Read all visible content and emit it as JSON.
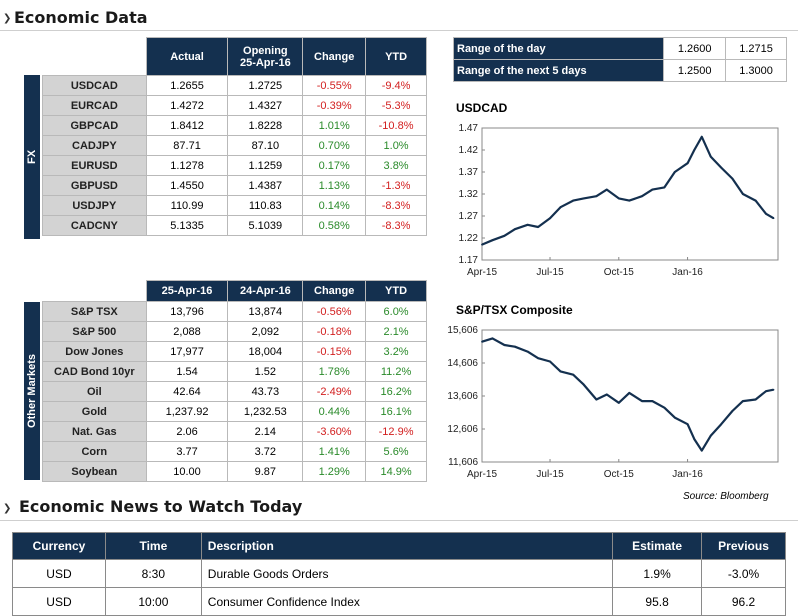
{
  "sections": {
    "economic_data": "Economic Data",
    "economic_news": "Economic News to Watch Today"
  },
  "fx": {
    "sidebar_label": "FX",
    "headers": [
      "Actual",
      "Opening",
      "25-Apr-16",
      "Change",
      "YTD"
    ],
    "rows": [
      {
        "name": "USDCAD",
        "actual": "1.2655",
        "opening": "1.2725",
        "change": "-0.55%",
        "ytd": "-9.4%"
      },
      {
        "name": "EURCAD",
        "actual": "1.4272",
        "opening": "1.4327",
        "change": "-0.39%",
        "ytd": "-5.3%"
      },
      {
        "name": "GBPCAD",
        "actual": "1.8412",
        "opening": "1.8228",
        "change": "1.01%",
        "ytd": "-10.8%"
      },
      {
        "name": "CADJPY",
        "actual": "87.71",
        "opening": "87.10",
        "change": "0.70%",
        "ytd": "1.0%"
      },
      {
        "name": "EURUSD",
        "actual": "1.1278",
        "opening": "1.1259",
        "change": "0.17%",
        "ytd": "3.8%"
      },
      {
        "name": "GBPUSD",
        "actual": "1.4550",
        "opening": "1.4387",
        "change": "1.13%",
        "ytd": "-1.3%"
      },
      {
        "name": "USDJPY",
        "actual": "110.99",
        "opening": "110.83",
        "change": "0.14%",
        "ytd": "-8.3%"
      },
      {
        "name": "CADCNY",
        "actual": "5.1335",
        "opening": "5.1039",
        "change": "0.58%",
        "ytd": "-8.3%"
      }
    ]
  },
  "other": {
    "sidebar_label": "Other Markets",
    "headers": [
      "25-Apr-16",
      "24-Apr-16",
      "Change",
      "YTD"
    ],
    "rows": [
      {
        "name": "S&P TSX",
        "a": "13,796",
        "b": "13,874",
        "change": "-0.56%",
        "ytd": "6.0%"
      },
      {
        "name": "S&P 500",
        "a": "2,088",
        "b": "2,092",
        "change": "-0.18%",
        "ytd": "2.1%"
      },
      {
        "name": "Dow Jones",
        "a": "17,977",
        "b": "18,004",
        "change": "-0.15%",
        "ytd": "3.2%"
      },
      {
        "name": "CAD Bond 10yr",
        "a": "1.54",
        "b": "1.52",
        "change": "1.78%",
        "ytd": "11.2%"
      },
      {
        "name": "Oil",
        "a": "42.64",
        "b": "43.73",
        "change": "-2.49%",
        "ytd": "16.2%"
      },
      {
        "name": "Gold",
        "a": "1,237.92",
        "b": "1,232.53",
        "change": "0.44%",
        "ytd": "16.1%"
      },
      {
        "name": "Nat. Gas",
        "a": "2.06",
        "b": "2.14",
        "change": "-3.60%",
        "ytd": "-12.9%"
      },
      {
        "name": "Corn",
        "a": "3.77",
        "b": "3.72",
        "change": "1.41%",
        "ytd": "5.6%"
      },
      {
        "name": "Soybean",
        "a": "10.00",
        "b": "9.87",
        "change": "1.29%",
        "ytd": "14.9%"
      }
    ]
  },
  "range": [
    {
      "label": "Range of the day",
      "low": "1.2600",
      "high": "1.2715"
    },
    {
      "label": "Range of the next 5 days",
      "low": "1.2500",
      "high": "1.3000"
    }
  ],
  "source": "Source: Bloomberg",
  "news": {
    "headers": [
      "Currency",
      "Time",
      "Description",
      "Estimate",
      "Previous"
    ],
    "rows": [
      {
        "currency": "USD",
        "time": "8:30",
        "description": "Durable Goods Orders",
        "estimate": "1.9%",
        "previous": "-3.0%"
      },
      {
        "currency": "USD",
        "time": "10:00",
        "description": "Consumer Confidence Index",
        "estimate": "95.8",
        "previous": "96.2"
      }
    ]
  },
  "colors": {
    "header_navy": "#14304f",
    "positive": "#2a8a2a",
    "negative": "#d21f1f",
    "line": "#14304f"
  },
  "chart_data": [
    {
      "type": "line",
      "title": "USDCAD",
      "x_ticks": [
        "Apr-15",
        "Jul-15",
        "Oct-15",
        "Jan-16"
      ],
      "y_ticks": [
        "1.47",
        "1.42",
        "1.37",
        "1.32",
        "1.27",
        "1.22",
        "1.17"
      ],
      "ylim": [
        1.17,
        1.47
      ],
      "x": [
        "2015-04-01",
        "2015-04-15",
        "2015-05-01",
        "2015-05-15",
        "2015-06-01",
        "2015-06-15",
        "2015-07-01",
        "2015-07-15",
        "2015-08-01",
        "2015-08-15",
        "2015-09-01",
        "2015-09-15",
        "2015-10-01",
        "2015-10-15",
        "2015-11-01",
        "2015-11-15",
        "2015-12-01",
        "2015-12-15",
        "2016-01-01",
        "2016-01-10",
        "2016-01-20",
        "2016-02-01",
        "2016-02-15",
        "2016-03-01",
        "2016-03-15",
        "2016-04-01",
        "2016-04-15",
        "2016-04-25"
      ],
      "values": [
        1.205,
        1.215,
        1.225,
        1.24,
        1.25,
        1.245,
        1.265,
        1.29,
        1.305,
        1.31,
        1.315,
        1.33,
        1.31,
        1.305,
        1.315,
        1.33,
        1.335,
        1.37,
        1.39,
        1.42,
        1.45,
        1.405,
        1.38,
        1.355,
        1.32,
        1.305,
        1.275,
        1.265
      ]
    },
    {
      "type": "line",
      "title": "S&P/TSX Composite",
      "x_ticks": [
        "Apr-15",
        "Jul-15",
        "Oct-15",
        "Jan-16"
      ],
      "y_ticks": [
        "15,606",
        "14,606",
        "13,606",
        "12,606",
        "11,606"
      ],
      "ylim": [
        11606,
        15606
      ],
      "x": [
        "2015-04-01",
        "2015-04-15",
        "2015-05-01",
        "2015-05-15",
        "2015-06-01",
        "2015-06-15",
        "2015-07-01",
        "2015-07-15",
        "2015-08-01",
        "2015-08-15",
        "2015-09-01",
        "2015-09-15",
        "2015-10-01",
        "2015-10-15",
        "2015-11-01",
        "2015-11-15",
        "2015-12-01",
        "2015-12-15",
        "2016-01-01",
        "2016-01-10",
        "2016-01-20",
        "2016-02-01",
        "2016-02-15",
        "2016-03-01",
        "2016-03-15",
        "2016-04-01",
        "2016-04-15",
        "2016-04-25"
      ],
      "values": [
        15250,
        15350,
        15150,
        15100,
        14950,
        14750,
        14650,
        14350,
        14250,
        13950,
        13500,
        13650,
        13400,
        13700,
        13450,
        13450,
        13250,
        12950,
        12750,
        12300,
        11950,
        12400,
        12750,
        13150,
        13450,
        13500,
        13750,
        13796
      ]
    }
  ]
}
